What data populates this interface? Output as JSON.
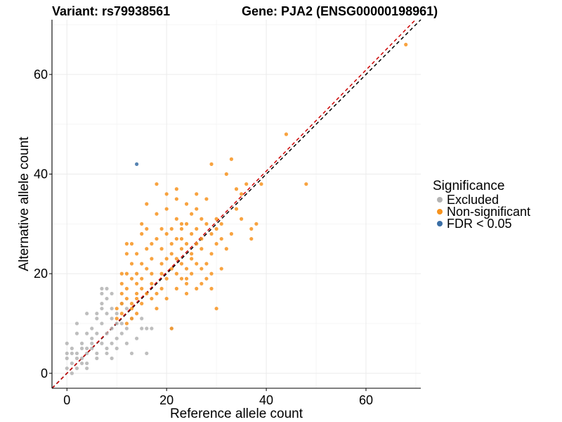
{
  "header": {
    "variant": "Variant: rs79938561",
    "gene": "Gene: PJA2 (ENSG00000198961)"
  },
  "legend": {
    "title": "Significance",
    "items": [
      {
        "label": "Excluded",
        "color": "#b3b3b3"
      },
      {
        "label": "Non-significant",
        "color": "#f7931e"
      },
      {
        "label": "FDR < 0.05",
        "color": "#3a6ea5"
      }
    ]
  },
  "chart_data": {
    "type": "scatter",
    "title": "Variant: rs79938561    Gene: PJA2 (ENSG00000198961)",
    "xlabel": "Reference allele count",
    "ylabel": "Alternative allele count",
    "xlim": [
      -3,
      71
    ],
    "ylim": [
      -3,
      71
    ],
    "xticks": [
      0,
      20,
      40,
      60
    ],
    "yticks": [
      0,
      20,
      40,
      60
    ],
    "grid": true,
    "reference_lines": [
      {
        "name": "identity",
        "slope": 1,
        "intercept": 0,
        "color": "#000000",
        "dash": "dashed"
      },
      {
        "name": "fit",
        "slope": 1.015,
        "intercept": 0,
        "color": "#cc0000",
        "dash": "dashed"
      }
    ],
    "series": [
      {
        "name": "Excluded",
        "color": "#b3b3b3",
        "x": [
          0,
          0,
          0,
          0,
          1,
          1,
          1,
          1,
          2,
          2,
          2,
          2,
          2,
          3,
          3,
          3,
          3,
          4,
          4,
          4,
          4,
          4,
          4,
          5,
          5,
          5,
          5,
          6,
          6,
          6,
          6,
          6,
          7,
          7,
          7,
          7,
          7,
          7,
          8,
          8,
          8,
          8,
          8,
          8,
          9,
          9,
          9,
          9,
          9,
          9,
          10,
          10,
          10,
          10,
          11,
          11,
          11,
          12,
          12,
          12,
          13,
          13,
          14,
          15,
          15,
          16,
          16,
          17,
          21
        ],
        "y": [
          1,
          3,
          4,
          6,
          0,
          2,
          4,
          5,
          4,
          8,
          10,
          3,
          1,
          2,
          3,
          5,
          6,
          1,
          2,
          8,
          12,
          5,
          4,
          6,
          7,
          5,
          9,
          4,
          12,
          8,
          11,
          3,
          6,
          13,
          14,
          16,
          17,
          10,
          5,
          12,
          8,
          15,
          17,
          4,
          6,
          11,
          13,
          16,
          9,
          3,
          7,
          10,
          12,
          5,
          14,
          8,
          10,
          6,
          9,
          13,
          4,
          11,
          7,
          9,
          11,
          4,
          9,
          9,
          9
        ]
      },
      {
        "name": "Non-significant",
        "color": "#f7931e",
        "x": [
          10,
          10,
          11,
          11,
          11,
          11,
          12,
          12,
          12,
          12,
          12,
          13,
          13,
          13,
          13,
          13,
          14,
          14,
          14,
          14,
          14,
          14,
          15,
          15,
          15,
          15,
          15,
          16,
          16,
          16,
          16,
          17,
          17,
          17,
          17,
          17,
          18,
          18,
          18,
          18,
          19,
          19,
          19,
          19,
          19,
          20,
          20,
          20,
          20,
          20,
          21,
          21,
          21,
          21,
          21,
          22,
          22,
          22,
          22,
          22,
          22,
          23,
          23,
          23,
          23,
          23,
          24,
          24,
          24,
          24,
          24,
          24,
          25,
          25,
          25,
          25,
          25,
          26,
          26,
          26,
          26,
          26,
          27,
          27,
          27,
          27,
          27,
          28,
          28,
          28,
          28,
          29,
          29,
          29,
          29,
          29,
          30,
          30,
          30,
          30,
          31,
          31,
          31,
          32,
          32,
          33,
          33,
          34,
          34,
          35,
          35,
          36,
          37,
          37,
          38,
          39,
          44,
          48,
          68,
          12,
          13,
          11,
          15,
          18,
          16,
          20,
          23,
          22,
          24,
          26
        ],
        "y": [
          11,
          13,
          14,
          16,
          12,
          18,
          10,
          15,
          20,
          26,
          17,
          13,
          19,
          22,
          14,
          11,
          12,
          16,
          18,
          24,
          15,
          20,
          14,
          17,
          22,
          28,
          19,
          16,
          21,
          25,
          29,
          15,
          18,
          23,
          20,
          26,
          13,
          16,
          27,
          38,
          22,
          17,
          20,
          25,
          29,
          23,
          19,
          28,
          33,
          15,
          21,
          24,
          26,
          29,
          9,
          17,
          20,
          23,
          31,
          35,
          37,
          19,
          22,
          27,
          25,
          29,
          18,
          21,
          26,
          30,
          34,
          16,
          20,
          23,
          28,
          32,
          24,
          17,
          26,
          29,
          33,
          36,
          18,
          21,
          25,
          27,
          31,
          22,
          30,
          35,
          19,
          28,
          42,
          24,
          20,
          17,
          13,
          26,
          29,
          31,
          21,
          27,
          30,
          25,
          40,
          28,
          43,
          33,
          37,
          36,
          31,
          38,
          29,
          27,
          30,
          38,
          48,
          38,
          66,
          24,
          26,
          20,
          30,
          32,
          34,
          36,
          30,
          27,
          19,
          22
        ]
      },
      {
        "name": "FDR < 0.05",
        "color": "#3a6ea5",
        "x": [
          14
        ],
        "y": [
          42
        ]
      }
    ]
  }
}
